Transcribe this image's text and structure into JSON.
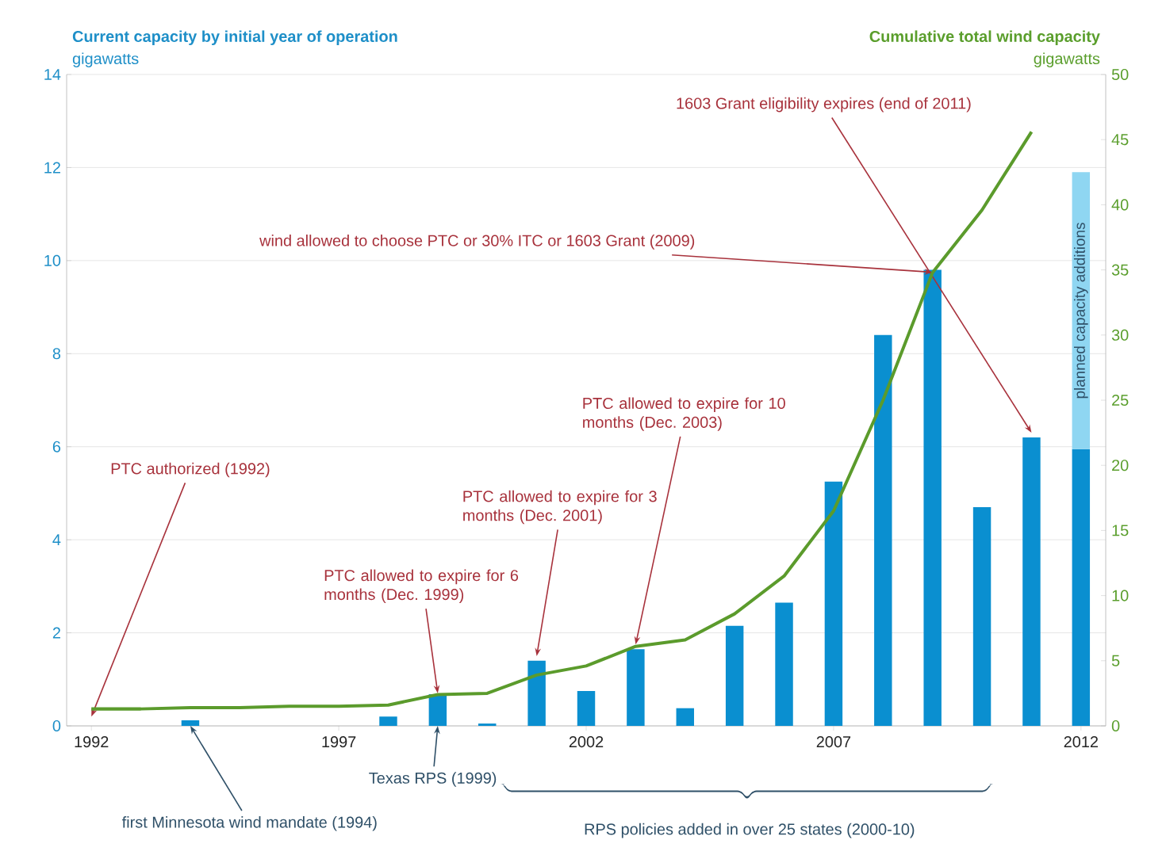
{
  "chart_data": {
    "type": "bar",
    "stacked": true,
    "grid": "y",
    "ylabel": "Current capacity by initial year of operation",
    "y2label": "Cumulative total wind capacity",
    "x": [
      1992,
      1993,
      1994,
      1995,
      1996,
      1997,
      1998,
      1999,
      2000,
      2001,
      2002,
      2003,
      2004,
      2005,
      2006,
      2007,
      2008,
      2009,
      2010,
      2011,
      2012
    ],
    "xlim": [
      1991.5,
      2012.5
    ],
    "xticks": [
      1992,
      1997,
      2002,
      2007,
      2012
    ],
    "ylim": [
      0,
      14
    ],
    "yticks": [
      0,
      2,
      4,
      6,
      8,
      10,
      12,
      14
    ],
    "y2lim": [
      0,
      50
    ],
    "y2ticks": [
      0,
      5,
      10,
      15,
      20,
      25,
      30,
      35,
      40,
      45,
      50
    ],
    "series": [
      {
        "color": "#0a8fd0",
        "values": [
          0,
          0,
          0.12,
          0,
          0,
          0,
          0.2,
          0.68,
          0.05,
          1.4,
          0.75,
          1.65,
          0.38,
          2.15,
          2.65,
          5.25,
          8.4,
          9.8,
          4.7,
          6.2,
          5.95
        ]
      },
      {
        "name": "planned capacity additions",
        "color": "#8fd6f2",
        "values": [
          null,
          null,
          null,
          null,
          null,
          null,
          null,
          null,
          null,
          null,
          null,
          null,
          null,
          null,
          null,
          null,
          null,
          null,
          null,
          null,
          5.95
        ]
      },
      {
        "type": "line",
        "axis": "y2",
        "color": "#5b9b2c",
        "values": [
          1.3,
          1.3,
          1.4,
          1.4,
          1.5,
          1.5,
          1.6,
          2.4,
          2.5,
          3.9,
          4.6,
          6.1,
          6.6,
          8.6,
          11.5,
          16.5,
          25.0,
          34.8,
          39.6,
          45.6,
          null
        ]
      }
    ],
    "annotations": [
      {
        "text": "PTC authorized (1992)",
        "x": 1992,
        "y": 0.2
      },
      {
        "text": "PTC allowed to expire for 6 months (Dec. 1999)",
        "x": 1999,
        "y": 0.7
      },
      {
        "text": "PTC allowed to expire for 3 months (Dec. 2001)",
        "x": 2001,
        "y": 1.5
      },
      {
        "text": "PTC allowed to expire for 10 months (Dec. 2003)",
        "x": 2003,
        "y": 1.75
      },
      {
        "text": "wind allowed to choose PTC or 30% ITC or 1603 Grant (2009)",
        "x": 2009,
        "y": 9.75
      },
      {
        "text": "1603 Grant eligibility expires (end of 2011)",
        "x": 2011,
        "y": 6.3
      },
      {
        "text": "Texas RPS (1999)",
        "x": 1999,
        "y": 0
      },
      {
        "text": "first Minnesota wind mandate (1994)",
        "x": 1994,
        "y": 0
      },
      "RPS policies added in over 25 states (2000-10)",
      "gigawatts",
      "gigawatts"
    ]
  }
}
